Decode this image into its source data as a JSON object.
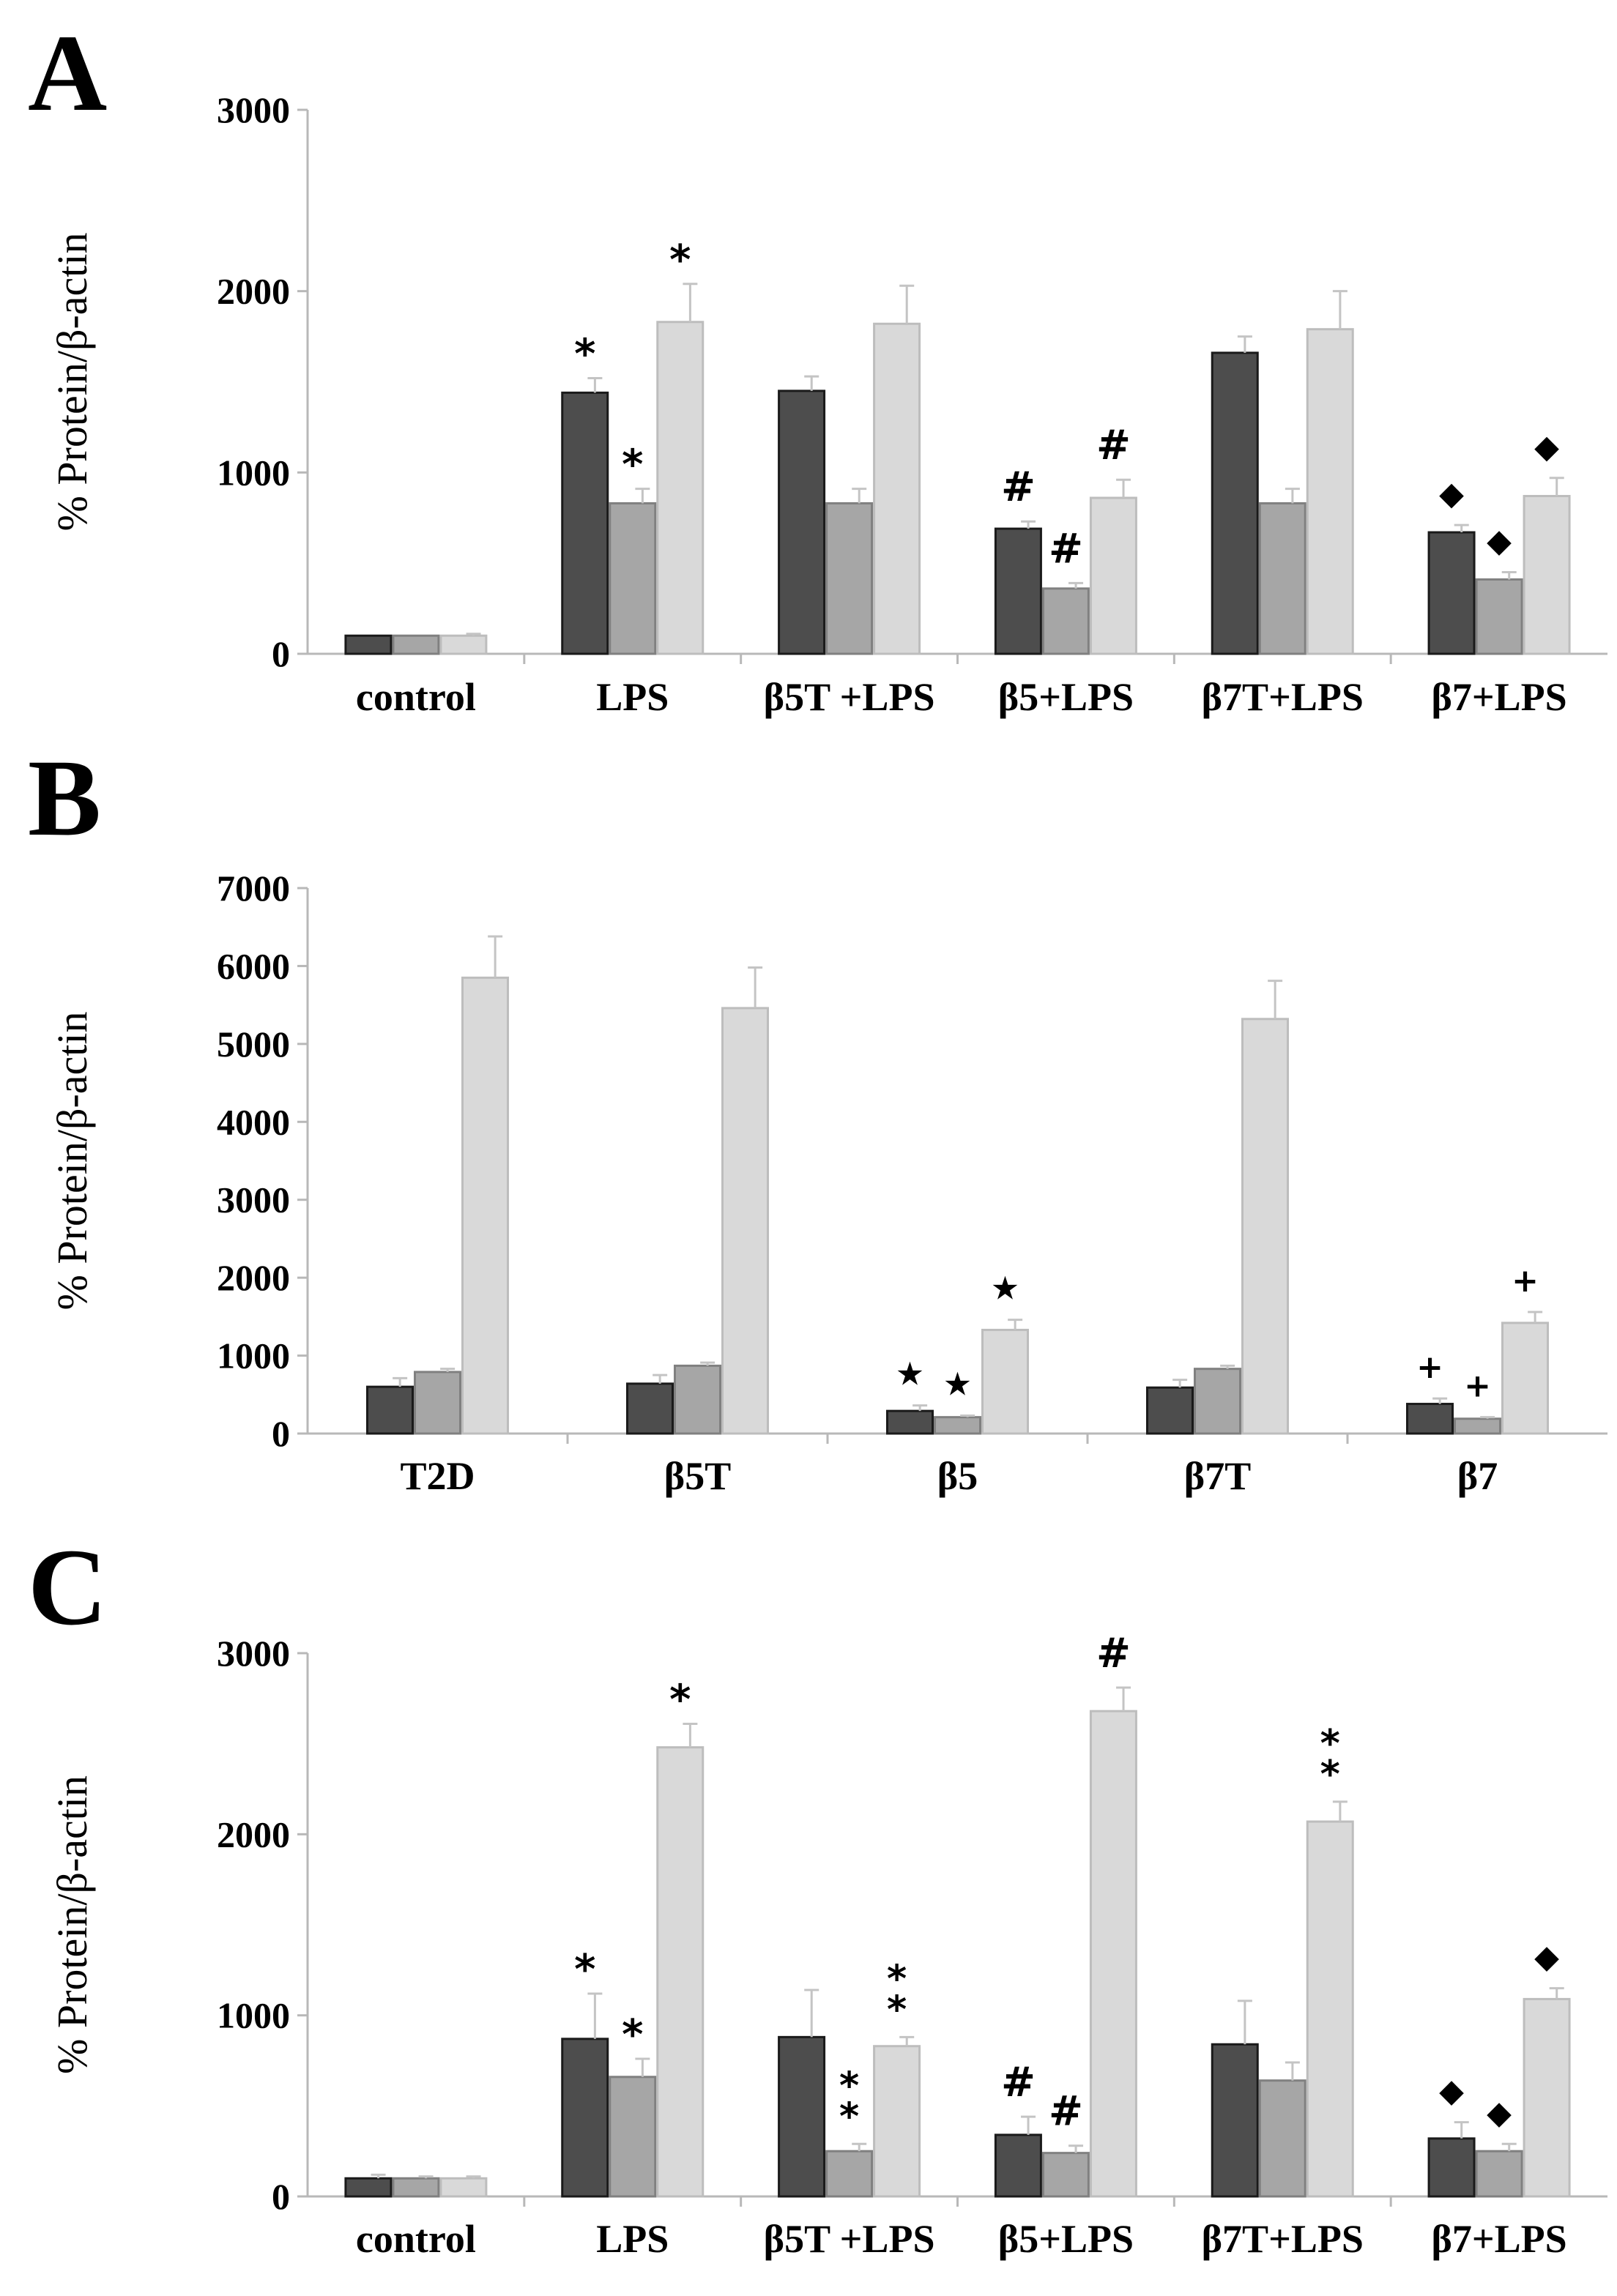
{
  "figure": {
    "colors": {
      "series1": "#4d4d4d",
      "series2": "#a6a6a6",
      "series3": "#d9d9d9",
      "axis": "#b8b8b8",
      "error": "#c4c4c4"
    },
    "y_axis_label": "% Protein/β-actin"
  },
  "chart_data": [
    {
      "type": "bar",
      "panel_label": "A",
      "ylabel": "% Protein/β-actin",
      "ylim": [
        0,
        3000
      ],
      "yticks": [
        "0",
        "1000",
        "2000",
        "3000"
      ],
      "categories": [
        "control",
        "LPS",
        "β5T +LPS",
        "β5+LPS",
        "β7T+LPS",
        "β7+LPS"
      ],
      "series": [
        {
          "name": "series 1",
          "color": "#4d4d4d",
          "values": [
            100,
            1440,
            1450,
            690,
            1660,
            670
          ],
          "errors": [
            0,
            80,
            80,
            40,
            90,
            40
          ],
          "marks": [
            "",
            "*",
            "",
            "#",
            "",
            "◆"
          ]
        },
        {
          "name": "series 2",
          "color": "#a6a6a6",
          "values": [
            100,
            830,
            830,
            360,
            830,
            410
          ],
          "errors": [
            0,
            80,
            80,
            30,
            80,
            40
          ],
          "marks": [
            "",
            "*",
            "",
            "#",
            "",
            "◆"
          ]
        },
        {
          "name": "series 3",
          "color": "#d9d9d9",
          "values": [
            100,
            1830,
            1820,
            860,
            1790,
            870
          ],
          "errors": [
            10,
            210,
            210,
            100,
            210,
            100
          ],
          "marks": [
            "",
            "*",
            "",
            "#",
            "",
            "◆"
          ]
        }
      ]
    },
    {
      "type": "bar",
      "panel_label": "B",
      "ylabel": "% Protein/β-actin",
      "ylim": [
        0,
        7000
      ],
      "yticks": [
        "0",
        "1000",
        "2000",
        "3000",
        "4000",
        "5000",
        "6000",
        "7000"
      ],
      "categories": [
        "T2D",
        "β5T",
        "β5",
        "β7T",
        "β7"
      ],
      "series": [
        {
          "name": "series 1",
          "color": "#4d4d4d",
          "values": [
            600,
            640,
            290,
            590,
            380
          ],
          "errors": [
            110,
            110,
            70,
            100,
            70
          ],
          "marks": [
            "",
            "",
            "★",
            "",
            "+"
          ]
        },
        {
          "name": "series 2",
          "color": "#a6a6a6",
          "values": [
            790,
            870,
            210,
            830,
            190
          ],
          "errors": [
            40,
            40,
            20,
            40,
            20
          ],
          "marks": [
            "",
            "",
            "★",
            "",
            "+"
          ]
        },
        {
          "name": "series 3",
          "color": "#d9d9d9",
          "values": [
            5850,
            5460,
            1330,
            5320,
            1420
          ],
          "errors": [
            530,
            520,
            130,
            490,
            140
          ],
          "marks": [
            "",
            "",
            "★",
            "",
            "+"
          ]
        }
      ]
    },
    {
      "type": "bar",
      "panel_label": "C",
      "ylabel": "% Protein/β-actin",
      "ylim": [
        0,
        3000
      ],
      "yticks": [
        "0",
        "1000",
        "2000",
        "3000"
      ],
      "categories": [
        "control",
        "LPS",
        "β5T +LPS",
        "β5+LPS",
        "β7T+LPS",
        "β7+LPS"
      ],
      "series": [
        {
          "name": "series 1",
          "color": "#4d4d4d",
          "values": [
            100,
            870,
            880,
            340,
            840,
            320
          ],
          "errors": [
            20,
            250,
            260,
            100,
            240,
            90
          ],
          "marks": [
            "",
            "*",
            "",
            "#",
            "",
            "◆"
          ]
        },
        {
          "name": "series 2",
          "color": "#a6a6a6",
          "values": [
            100,
            660,
            250,
            240,
            640,
            250
          ],
          "errors": [
            10,
            100,
            40,
            40,
            100,
            40
          ],
          "marks": [
            "",
            "*",
            "**",
            "#",
            "",
            "◆"
          ]
        },
        {
          "name": "series 3",
          "color": "#d9d9d9",
          "values": [
            100,
            2480,
            830,
            2680,
            2070,
            1090
          ],
          "errors": [
            10,
            130,
            50,
            130,
            110,
            60
          ],
          "marks": [
            "",
            "*",
            "**",
            "#",
            "**",
            "◆"
          ]
        }
      ]
    }
  ]
}
